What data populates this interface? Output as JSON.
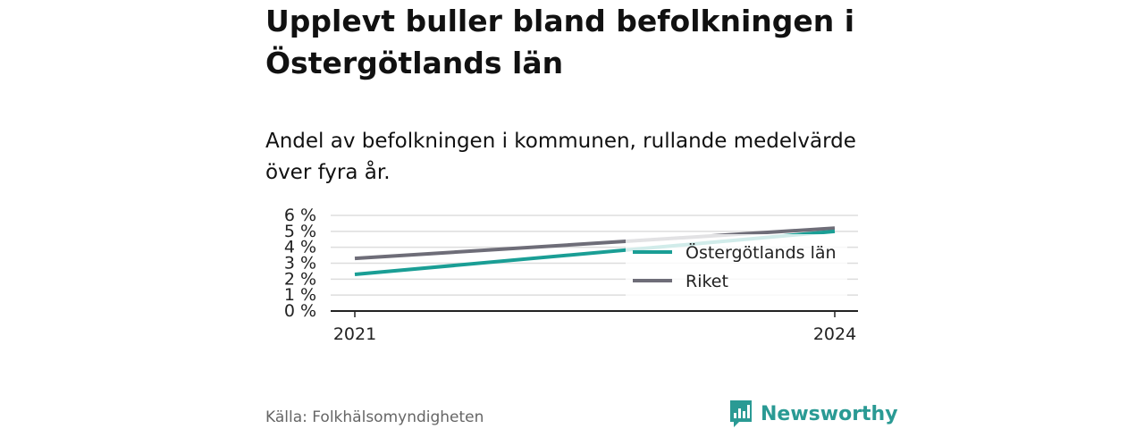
{
  "title": "Upplevt buller bland befolkningen i Östergötlands län",
  "subtitle": "Andel av befolkningen i kommunen, rullande medelvärde över fyra år.",
  "source": "Källa: Folkhälsomyndigheten",
  "brand": {
    "name": "Newsworthy",
    "icon": "bar-chart-speech-bubble-icon",
    "color": "#2a9a94"
  },
  "chart_data": {
    "type": "line",
    "x": [
      "2021",
      "2024"
    ],
    "series": [
      {
        "name": "Östergötlands län",
        "values": [
          2.3,
          5.0
        ],
        "color": "#1a9e95"
      },
      {
        "name": "Riket",
        "values": [
          3.3,
          5.2
        ],
        "color": "#6e6d78"
      }
    ],
    "y_ticks": [
      "0 %",
      "1 %",
      "2 %",
      "3 %",
      "4 %",
      "5 %",
      "6 %"
    ],
    "x_ticks": [
      "2021",
      "2024"
    ],
    "ylim": [
      0,
      6
    ],
    "grid": true,
    "legend": "right",
    "xlabel": "",
    "ylabel": ""
  }
}
